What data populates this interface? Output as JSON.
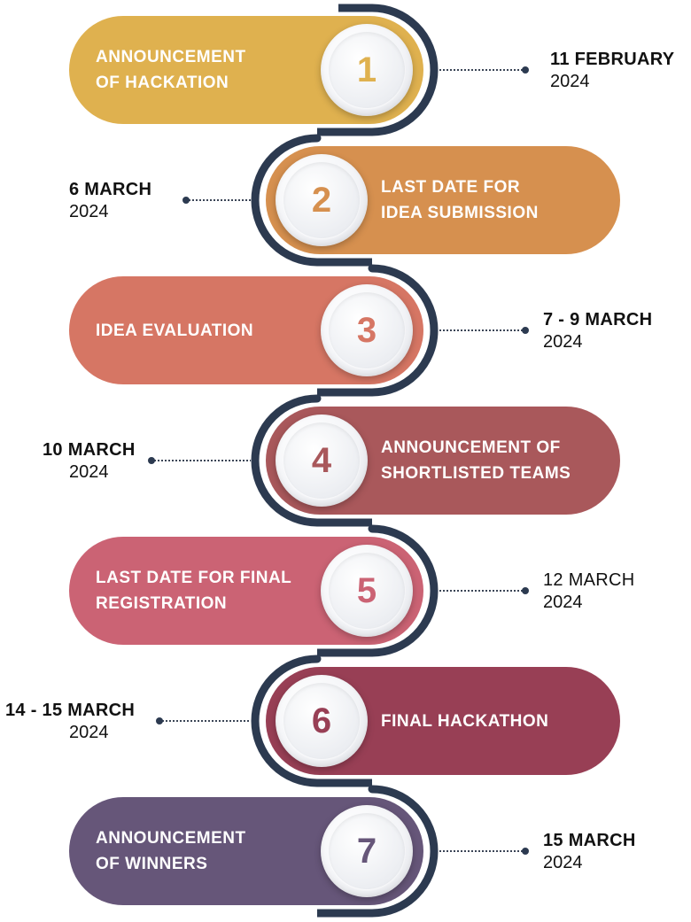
{
  "colors": {
    "track": "#2c3a50",
    "connector": "#3b4556"
  },
  "steps": [
    {
      "number": "1",
      "label": "ANNOUNCEMENT\nOF HACKATION",
      "date": "11 FEBRUARY",
      "year": "2024",
      "color": "#dfb14f",
      "number_color": "#dfb14f",
      "date_bold": true
    },
    {
      "number": "2",
      "label": "LAST DATE FOR\nIDEA SUBMISSION",
      "date": "6 MARCH",
      "year": "2024",
      "color": "#d6904f",
      "number_color": "#d6904f",
      "date_bold": true
    },
    {
      "number": "3",
      "label": "IDEA EVALUATION",
      "date": "7 - 9 MARCH",
      "year": "2024",
      "color": "#d67664",
      "number_color": "#d67664",
      "date_bold": true
    },
    {
      "number": "4",
      "label": "ANNOUNCEMENT OF\nSHORTLISTED TEAMS",
      "date": "10 MARCH",
      "year": "2024",
      "color": "#a9585b",
      "number_color": "#a9585b",
      "date_bold": true
    },
    {
      "number": "5",
      "label": "LAST DATE FOR FINAL\nREGISTRATION",
      "date": "12 MARCH",
      "year": "2024",
      "color": "#cb6374",
      "number_color": "#cb6374",
      "date_bold": false
    },
    {
      "number": "6",
      "label": "FINAL HACKATHON",
      "date": "14 - 15 MARCH",
      "year": "2024",
      "color": "#983f55",
      "number_color": "#983f55",
      "date_bold": true
    },
    {
      "number": "7",
      "label": "ANNOUNCEMENT\nOF WINNERS",
      "date": "15 MARCH",
      "year": "2024",
      "color": "#665679",
      "number_color": "#665679",
      "date_bold": true
    }
  ]
}
